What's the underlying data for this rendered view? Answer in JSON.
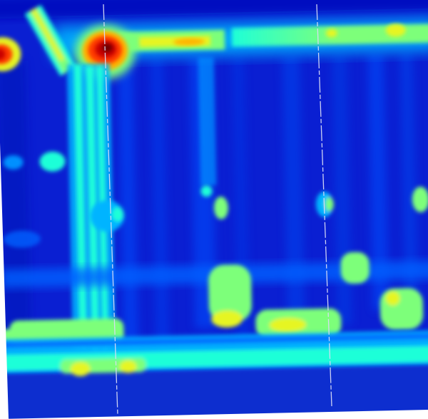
{
  "colormap": {
    "name": "jet",
    "stops": [
      "#00007f",
      "#0000e6",
      "#0050ff",
      "#00b4ff",
      "#1effd8",
      "#7dff7a",
      "#e6f520",
      "#ffb300",
      "#ff3a00",
      "#c80000",
      "#6a0000"
    ]
  },
  "colors": {
    "background": "#ffffff",
    "field_base": "#0a1fd2",
    "lower_band": "#0c2fcf",
    "marker_line": "#d8dcf5"
  }
}
